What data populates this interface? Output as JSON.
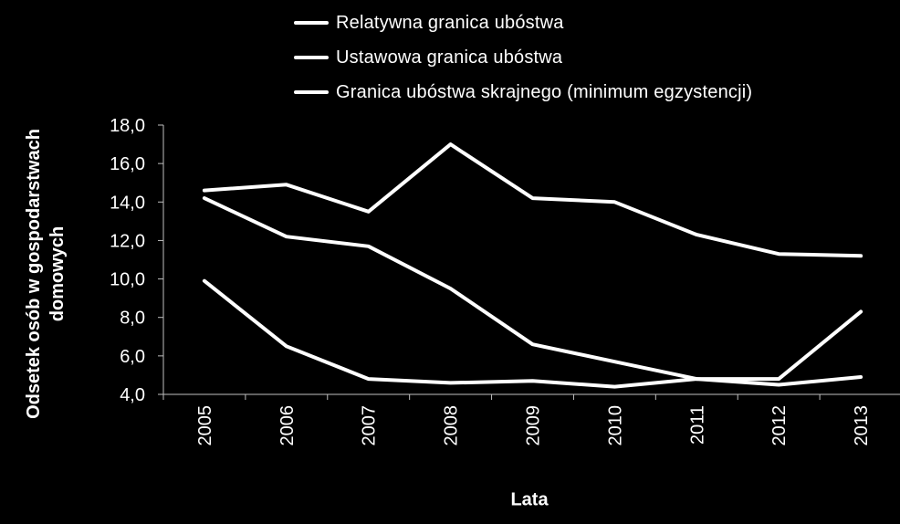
{
  "chart_data": {
    "type": "line",
    "title": "",
    "xlabel": "Lata",
    "ylabel": "Odsetek osób w gospodarstwach domowych",
    "ylim": [
      4,
      18
    ],
    "yticks": [
      "4,0",
      "6,0",
      "8,0",
      "10,0",
      "12,0",
      "14,0",
      "16,0",
      "18,0"
    ],
    "categories": [
      "2005",
      "2006",
      "2007",
      "2008",
      "2009",
      "2010",
      "2011",
      "2012",
      "2013"
    ],
    "grid": false,
    "legend_position": "top",
    "series": [
      {
        "name": "Relatywna granica ubóstwa",
        "values": [
          14.6,
          14.9,
          13.5,
          17.0,
          14.2,
          14.0,
          12.3,
          11.3,
          11.2
        ]
      },
      {
        "name": "Ustawowa granica ubóstwa",
        "values": [
          14.2,
          12.2,
          11.7,
          9.5,
          6.6,
          5.7,
          4.8,
          4.8,
          8.3
        ]
      },
      {
        "name": "Granica ubóstwa skrajnego (minimum egzystencji)",
        "values": [
          9.9,
          6.5,
          4.8,
          4.6,
          4.7,
          4.4,
          4.8,
          4.5,
          4.9
        ]
      }
    ],
    "colors": {
      "background": "#000000",
      "line": "#ffffff",
      "axis": "#bfbfbf"
    }
  }
}
